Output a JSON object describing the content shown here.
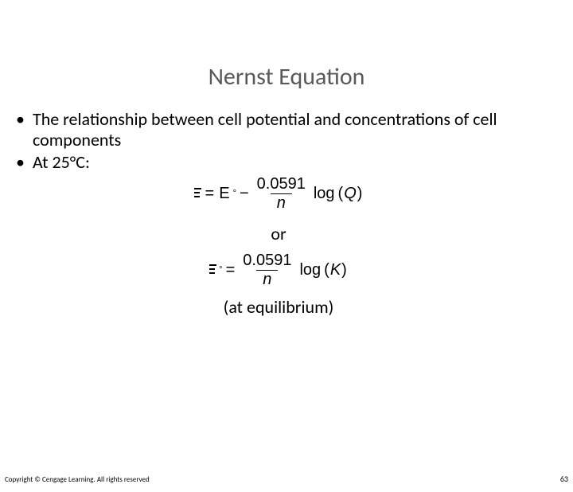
{
  "title": "Nernst Equation",
  "bullets": [
    "The relationship between cell potential and concentrations of cell components",
    "At 25°C:"
  ],
  "equation1": {
    "lhs_symbol": "Ξ",
    "equals": "=",
    "E_label": "E",
    "degree": "°",
    "minus": "−",
    "numerator": "0.0591",
    "denominator": "n",
    "log_label": "log",
    "arg": "Q"
  },
  "or_label": "or",
  "equation2": {
    "lhs_symbol": "Ξ",
    "degree": "°",
    "equals": "=",
    "numerator": "0.0591",
    "denominator": "n",
    "log_label": "log",
    "arg": "K"
  },
  "at_equilibrium": "(at equilibrium)",
  "copyright": "Copyright © Cengage Learning. All rights reserved",
  "page_number": "63",
  "colors": {
    "title": "#595959",
    "text": "#000000",
    "background": "#ffffff"
  },
  "fontsizes": {
    "title": 30,
    "body": 22,
    "equation": 20,
    "copyright": 9,
    "pagenum": 10
  }
}
